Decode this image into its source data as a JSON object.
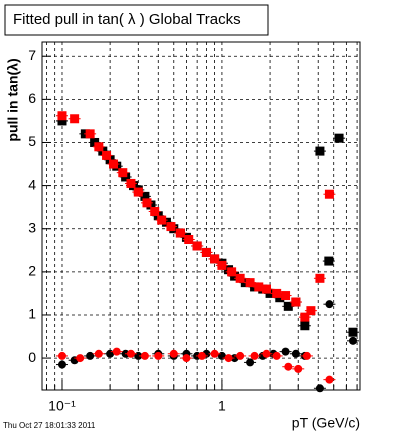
{
  "chart_data": {
    "type": "scatter",
    "title": "Fitted pull in tan( λ )  Global Tracks",
    "y_label": "pull in tan(λ)",
    "x_label": "pT (GeV/c)",
    "timestamp": "Thu Oct 27 18:01:33 2011",
    "x_log": true,
    "grid": true,
    "xlim": [
      0.075,
      7.3
    ],
    "ylim": [
      -0.74,
      7.33
    ],
    "xticks": [
      {
        "value": 0.1,
        "label": "10⁻¹"
      },
      1
    ],
    "xminor": [
      0.08,
      0.09,
      0.2,
      0.3,
      0.4,
      0.5,
      0.6,
      0.7,
      0.8,
      0.9,
      2,
      3,
      4,
      5,
      6,
      7
    ],
    "yticks": [
      0,
      1,
      2,
      3,
      4,
      5,
      6,
      7
    ],
    "series": [
      {
        "marker": "square",
        "color": "#000000",
        "x": [
          0.1,
          0.14,
          0.16,
          0.18,
          0.2,
          0.22,
          0.25,
          0.28,
          0.3,
          0.33,
          0.36,
          0.4,
          0.45,
          0.5,
          0.55,
          0.6,
          0.7,
          0.8,
          0.9,
          1.0,
          1.1,
          1.2,
          1.4,
          1.6,
          1.8,
          2.0,
          2.3,
          2.6,
          2.9,
          3.3,
          4.1,
          4.66,
          5.4,
          6.6
        ],
        "values": [
          5.5,
          5.2,
          5.0,
          4.8,
          4.6,
          4.45,
          4.2,
          4.0,
          3.9,
          3.75,
          3.55,
          3.3,
          3.15,
          3.0,
          2.9,
          2.8,
          2.6,
          2.45,
          2.3,
          2.2,
          2.05,
          1.9,
          1.75,
          1.65,
          1.6,
          1.5,
          1.4,
          1.2,
          1.3,
          0.75,
          4.8,
          2.25,
          5.1,
          0.6
        ]
      },
      {
        "marker": "square",
        "color": "#ff0000",
        "x": [
          0.1,
          0.12,
          0.15,
          0.17,
          0.19,
          0.21,
          0.24,
          0.27,
          0.3,
          0.34,
          0.38,
          0.42,
          0.48,
          0.55,
          0.62,
          0.7,
          0.8,
          0.9,
          1.0,
          1.15,
          1.3,
          1.5,
          1.7,
          1.9,
          2.2,
          2.5,
          2.9,
          3.3,
          3.6,
          4.1,
          4.7
        ],
        "values": [
          5.62,
          5.55,
          5.2,
          4.9,
          4.7,
          4.5,
          4.3,
          4.05,
          3.85,
          3.6,
          3.4,
          3.2,
          3.05,
          2.9,
          2.75,
          2.6,
          2.45,
          2.3,
          2.15,
          2.0,
          1.85,
          1.75,
          1.65,
          1.6,
          1.5,
          1.45,
          1.3,
          0.95,
          1.1,
          1.85,
          3.8
        ]
      },
      {
        "marker": "circle",
        "color": "#000000",
        "x": [
          0.1,
          0.12,
          0.15,
          0.2,
          0.25,
          0.3,
          0.4,
          0.5,
          0.6,
          0.7,
          0.8,
          1.0,
          1.2,
          1.5,
          1.8,
          2.1,
          2.5,
          2.9,
          3.3,
          4.1,
          4.7,
          6.6
        ],
        "values": [
          -0.15,
          -0.05,
          0.05,
          0.1,
          0.1,
          0.05,
          0.1,
          0.05,
          0.1,
          0.05,
          0.1,
          0.05,
          0,
          -0.1,
          0.05,
          0.1,
          0.15,
          0.1,
          0.05,
          -0.7,
          1.25,
          0.4
        ]
      },
      {
        "marker": "circle",
        "color": "#ff0000",
        "x": [
          0.1,
          0.13,
          0.17,
          0.22,
          0.27,
          0.33,
          0.4,
          0.5,
          0.6,
          0.75,
          0.9,
          1.1,
          1.3,
          1.6,
          1.9,
          2.2,
          2.6,
          3.0,
          3.4,
          4.7
        ],
        "values": [
          0.05,
          0,
          0.1,
          0.15,
          0.1,
          0.05,
          0.05,
          0.1,
          0,
          0.05,
          0.1,
          0,
          0.05,
          0.05,
          0.1,
          0.05,
          -0.2,
          -0.25,
          0.05,
          -0.5
        ]
      }
    ]
  }
}
